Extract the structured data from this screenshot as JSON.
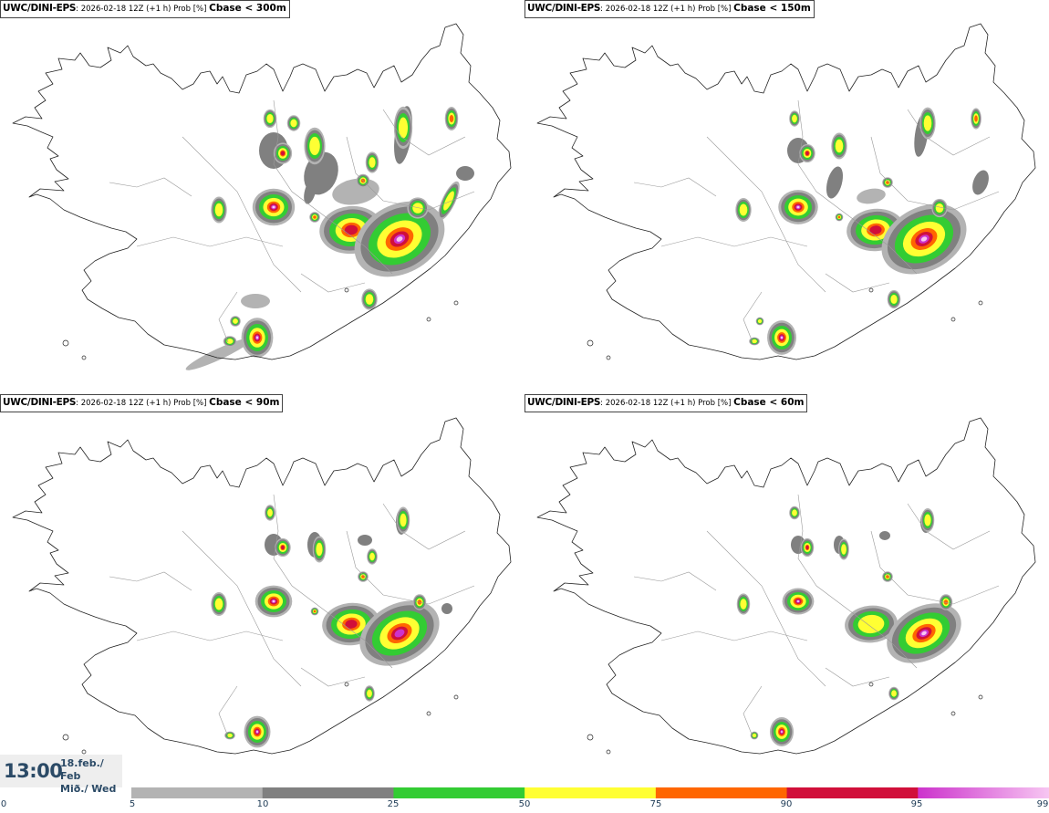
{
  "panels": [
    {
      "model": "UWC/DINI-EPS",
      "meta": ": 2026-02-18 12Z (+1 h) Prob [%] ",
      "cbase": "Cbase < 300m"
    },
    {
      "model": "UWC/DINI-EPS",
      "meta": ": 2026-02-18 12Z (+1 h) Prob [%] ",
      "cbase": "Cbase < 150m"
    },
    {
      "model": "UWC/DINI-EPS",
      "meta": ": 2026-02-18 12Z (+1 h) Prob [%] ",
      "cbase": "Cbase < 90m"
    },
    {
      "model": "UWC/DINI-EPS",
      "meta": ": 2026-02-18 12Z (+1 h) Prob [%] ",
      "cbase": "Cbase < 60m"
    }
  ],
  "valid_time": {
    "time": "13:00",
    "date_line1": "18.feb./ Feb",
    "date_line2": "Mið./ Wed"
  },
  "legend": {
    "ticks": [
      "0",
      "5",
      "10",
      "25",
      "50",
      "75",
      "90",
      "95",
      "99"
    ],
    "bins": [
      {
        "from": 5,
        "to": 10,
        "color": "#b3b3b3"
      },
      {
        "from": 10,
        "to": 25,
        "color": "#808080"
      },
      {
        "from": 25,
        "to": 50,
        "color": "#33cc33"
      },
      {
        "from": 50,
        "to": 75,
        "color": "#ffff33"
      },
      {
        "from": 75,
        "to": 90,
        "color": "#ff6600"
      },
      {
        "from": 90,
        "to": 95,
        "color": "#d10f3a"
      },
      {
        "from": 95,
        "to": 99,
        "color": "#cc33cc",
        "to_color": "#f7c6f2"
      }
    ]
  }
}
